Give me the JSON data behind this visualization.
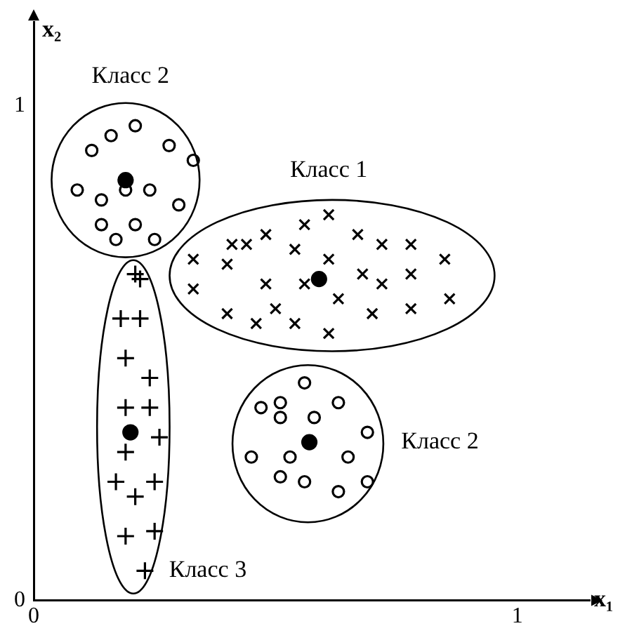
{
  "chart_data": {
    "type": "scatter",
    "xlabel": "x₁",
    "ylabel": "x₂",
    "xlim": [
      0,
      1.15
    ],
    "ylim": [
      0,
      1.17
    ],
    "xticks": [
      0,
      1
    ],
    "yticks": [
      0,
      1
    ],
    "grid": false,
    "legend": false,
    "series": [
      {
        "color": "#000000",
        "marker": "cross",
        "x": [
          0.41,
          0.44,
          0.48,
          0.56,
          0.61,
          0.67,
          0.72,
          0.78,
          0.33,
          0.4,
          0.54,
          0.61,
          0.85,
          0.48,
          0.56,
          0.68,
          0.72,
          0.78,
          0.33,
          0.63,
          0.86,
          0.4,
          0.46,
          0.5,
          0.54,
          0.61,
          0.7,
          0.78
        ],
        "values": [
          0.72,
          0.72,
          0.74,
          0.76,
          0.78,
          0.74,
          0.72,
          0.72,
          0.69,
          0.68,
          0.71,
          0.69,
          0.69,
          0.64,
          0.64,
          0.66,
          0.64,
          0.66,
          0.63,
          0.61,
          0.61,
          0.58,
          0.56,
          0.59,
          0.56,
          0.54,
          0.58,
          0.59
        ]
      },
      {
        "color": "#000000",
        "marker": "circle",
        "x": [
          0.16,
          0.21,
          0.12,
          0.28,
          0.33,
          0.09,
          0.14,
          0.19,
          0.24,
          0.3,
          0.14,
          0.21,
          0.17,
          0.25,
          0.56,
          0.47,
          0.51,
          0.51,
          0.63,
          0.58,
          0.69,
          0.45,
          0.53,
          0.65,
          0.51,
          0.56,
          0.63,
          0.69
        ],
        "values": [
          0.94,
          0.96,
          0.91,
          0.92,
          0.89,
          0.83,
          0.81,
          0.83,
          0.83,
          0.8,
          0.76,
          0.76,
          0.73,
          0.73,
          0.44,
          0.39,
          0.4,
          0.37,
          0.4,
          0.37,
          0.34,
          0.29,
          0.29,
          0.29,
          0.25,
          0.24,
          0.22,
          0.24
        ]
      },
      {
        "color": "#000000",
        "marker": "plus",
        "x": [
          0.21,
          0.22,
          0.18,
          0.22,
          0.19,
          0.24,
          0.19,
          0.24,
          0.26,
          0.19,
          0.17,
          0.21,
          0.25,
          0.19,
          0.25,
          0.23
        ],
        "values": [
          0.66,
          0.65,
          0.57,
          0.57,
          0.49,
          0.45,
          0.39,
          0.39,
          0.33,
          0.3,
          0.24,
          0.21,
          0.24,
          0.13,
          0.14,
          0.06
        ]
      },
      {
        "color": "#000000",
        "marker": "circle",
        "x": [
          0.19,
          0.59,
          0.2,
          0.57
        ],
        "values": [
          0.85,
          0.65,
          0.34,
          0.32
        ]
      }
    ],
    "annotations": [
      "Класс 2",
      "Класс 1",
      "Класс 2",
      "Класс 3"
    ]
  }
}
